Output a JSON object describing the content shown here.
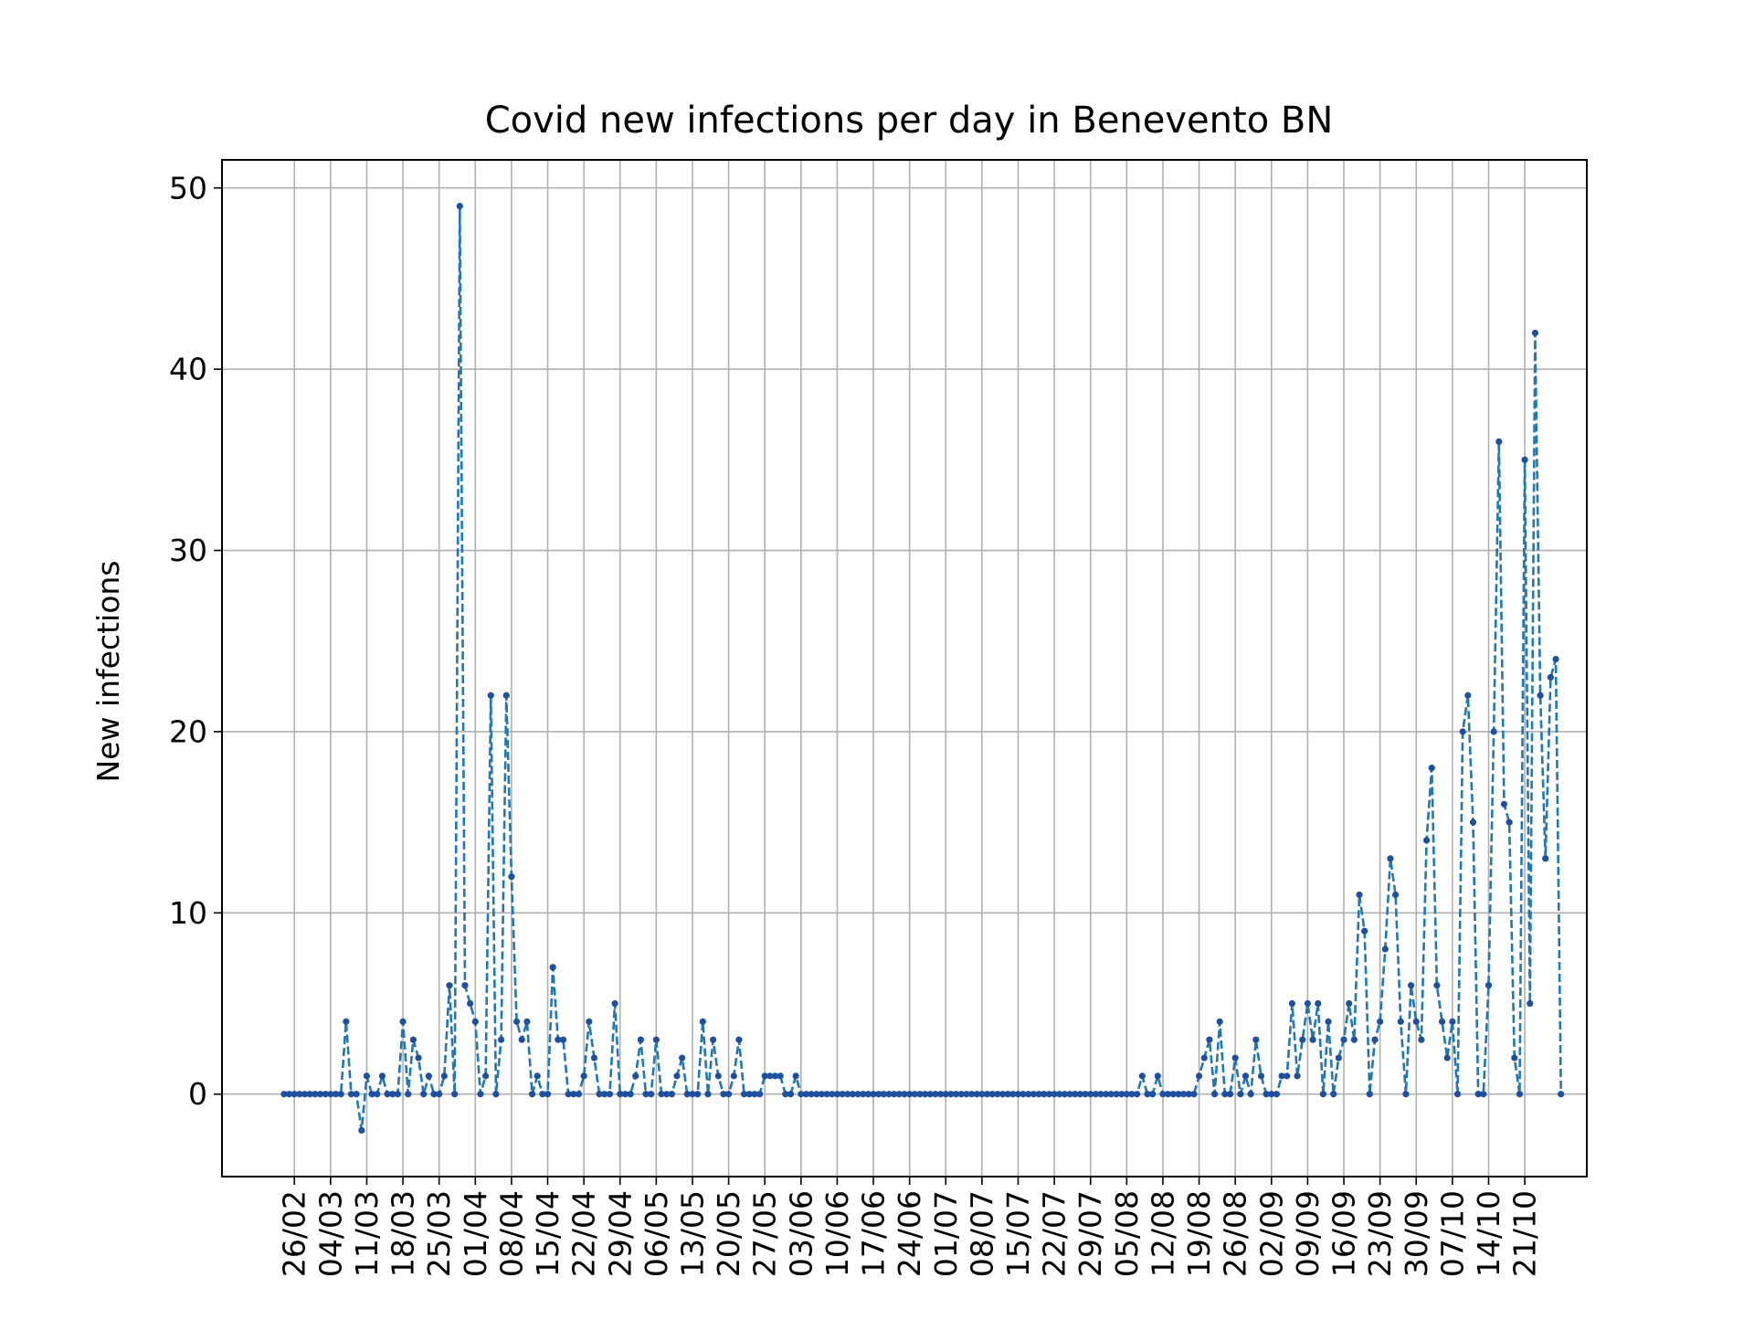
{
  "chart_data": {
    "type": "line",
    "title": "Covid new infections per day in Benevento BN",
    "xlabel": "",
    "ylabel": "New infections",
    "ylim": [
      -4.55,
      51.55
    ],
    "yticks": [
      0,
      10,
      20,
      30,
      40,
      50
    ],
    "grid": true,
    "line_color": "#1f77b4",
    "line_style": "dashed",
    "marker_color": "#1f4fa0",
    "x_start": "2020-02-24",
    "x_end": "2020-10-21",
    "x_tick_labels": [
      "26/02",
      "04/03",
      "11/03",
      "18/03",
      "25/03",
      "01/04",
      "08/04",
      "15/04",
      "22/04",
      "29/04",
      "06/05",
      "13/05",
      "20/05",
      "27/05",
      "03/06",
      "10/06",
      "17/06",
      "24/06",
      "01/07",
      "08/07",
      "15/07",
      "22/07",
      "29/07",
      "05/08",
      "12/08",
      "19/08",
      "26/08",
      "02/09",
      "09/09",
      "16/09",
      "23/09",
      "30/09",
      "07/10",
      "14/10",
      "21/10"
    ],
    "x_tick_dates": [
      "2020-02-26",
      "2020-03-04",
      "2020-03-11",
      "2020-03-18",
      "2020-03-25",
      "2020-04-01",
      "2020-04-08",
      "2020-04-15",
      "2020-04-22",
      "2020-04-29",
      "2020-05-06",
      "2020-05-13",
      "2020-05-20",
      "2020-05-27",
      "2020-06-03",
      "2020-06-10",
      "2020-06-17",
      "2020-06-24",
      "2020-07-01",
      "2020-07-08",
      "2020-07-15",
      "2020-07-22",
      "2020-07-29",
      "2020-08-05",
      "2020-08-12",
      "2020-08-19",
      "2020-08-26",
      "2020-09-02",
      "2020-09-09",
      "2020-09-16",
      "2020-09-23",
      "2020-09-30",
      "2020-10-07",
      "2020-10-14",
      "2020-10-21"
    ],
    "series": [
      {
        "name": "",
        "values": [
          0,
          0,
          0,
          0,
          0,
          0,
          0,
          0,
          0,
          0,
          0,
          0,
          4,
          0,
          0,
          -2,
          1,
          0,
          0,
          1,
          0,
          0,
          0,
          4,
          0,
          3,
          2,
          0,
          1,
          0,
          0,
          1,
          6,
          0,
          49,
          6,
          5,
          4,
          0,
          1,
          22,
          0,
          3,
          22,
          12,
          4,
          3,
          4,
          0,
          1,
          0,
          0,
          7,
          3,
          3,
          0,
          0,
          0,
          1,
          4,
          2,
          0,
          0,
          0,
          5,
          0,
          0,
          0,
          1,
          3,
          0,
          0,
          3,
          0,
          0,
          0,
          1,
          2,
          0,
          0,
          0,
          4,
          0,
          3,
          1,
          0,
          0,
          1,
          3,
          0,
          0,
          0,
          0,
          1,
          1,
          1,
          1,
          0,
          0,
          1,
          0,
          0,
          0,
          0,
          0,
          0,
          0,
          0,
          0,
          0,
          0,
          0,
          0,
          0,
          0,
          0,
          0,
          0,
          0,
          0,
          0,
          0,
          0,
          0,
          0,
          0,
          0,
          0,
          0,
          0,
          0,
          0,
          0,
          0,
          0,
          0,
          0,
          0,
          0,
          0,
          0,
          0,
          0,
          0,
          0,
          0,
          0,
          0,
          0,
          0,
          0,
          0,
          0,
          0,
          0,
          0,
          0,
          0,
          0,
          0,
          0,
          0,
          0,
          0,
          0,
          0,
          1,
          0,
          0,
          1,
          0,
          0,
          0,
          0,
          0,
          0,
          0,
          1,
          2,
          3,
          0,
          4,
          0,
          0,
          2,
          0,
          1,
          0,
          3,
          1,
          0,
          0,
          0,
          1,
          1,
          5,
          1,
          3,
          5,
          3,
          5,
          0,
          4,
          0,
          2,
          3,
          5,
          3,
          11,
          9,
          0,
          3,
          4,
          8,
          13,
          11,
          4,
          0,
          6,
          4,
          3,
          14,
          18,
          6,
          4,
          2,
          4,
          0,
          20,
          22,
          15,
          0,
          0,
          6,
          20,
          36,
          16,
          15,
          2,
          0,
          35,
          5,
          42,
          22,
          13,
          23,
          24,
          0
        ]
      }
    ]
  }
}
